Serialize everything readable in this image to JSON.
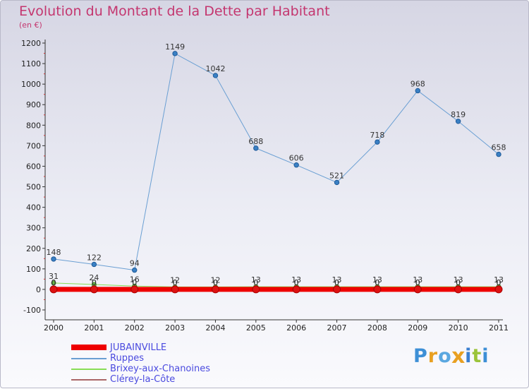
{
  "title": "Evolution du Montant de la Dette par Habitant",
  "unit": "(en €)",
  "brand": "Proxiti",
  "chart_data": {
    "type": "line",
    "title": "Evolution du Montant de la Dette par Habitant",
    "ylabel": "(en €)",
    "xlabel": "",
    "x": [
      "2000",
      "2001",
      "2002",
      "2003",
      "2004",
      "2005",
      "2006",
      "2007",
      "2008",
      "2009",
      "2010",
      "2011"
    ],
    "ylim": [
      -100,
      1200
    ],
    "yticks": [
      -100,
      0,
      100,
      200,
      300,
      400,
      500,
      600,
      700,
      800,
      900,
      1000,
      1100,
      1200
    ],
    "grid": false,
    "series": [
      {
        "name": "JUBAINVILLE",
        "color": "#ee0000",
        "width": 7,
        "values": [
          0,
          0,
          0,
          0,
          0,
          0,
          0,
          0,
          0,
          0,
          0,
          0
        ]
      },
      {
        "name": "Ruppes",
        "color": "#6a9fd3",
        "width": 1,
        "values": [
          148,
          122,
          94,
          1149,
          1042,
          688,
          606,
          521,
          718,
          968,
          819,
          658
        ]
      },
      {
        "name": "Brixey-aux-Chanoines",
        "color": "#88dd55",
        "width": 1,
        "values": [
          31,
          24,
          16,
          12,
          12,
          13,
          13,
          13,
          13,
          13,
          13,
          13
        ]
      },
      {
        "name": "Clérey-la-Côte",
        "color": "#aa6666",
        "width": 1,
        "values": [
          0,
          0,
          0,
          0,
          0,
          0,
          0,
          0,
          0,
          0,
          0,
          0
        ]
      }
    ]
  }
}
